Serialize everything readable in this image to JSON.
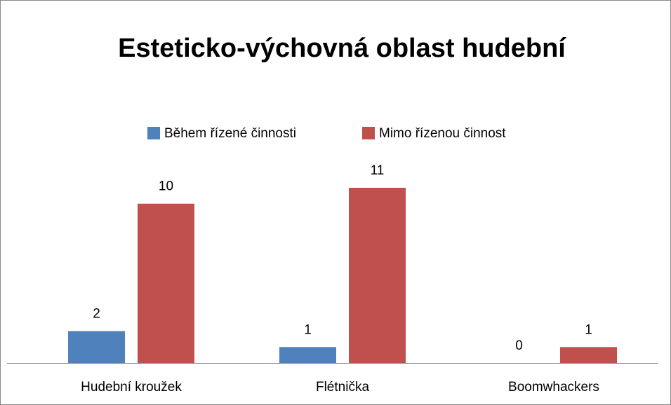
{
  "chart_data": {
    "type": "bar",
    "title": "Esteticko-výchovná oblast hudební",
    "categories": [
      "Hudební kroužek",
      "Flétnička",
      "Boomwhackers"
    ],
    "series": [
      {
        "name": "Během řízené činnosti",
        "color": "#4f81bd",
        "values": [
          2,
          1,
          0
        ]
      },
      {
        "name": "Mimo řízenou činnost",
        "color": "#c0504d",
        "values": [
          10,
          11,
          1
        ]
      }
    ],
    "legend": "top"
  }
}
